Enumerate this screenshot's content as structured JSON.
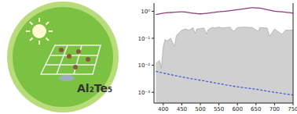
{
  "logo": {
    "text": "Al₂Te₅"
  },
  "chart_data": {
    "type": "line",
    "log": "y",
    "grid": false,
    "xlim": [
      375,
      750
    ],
    "xticks": [
      400,
      450,
      500,
      550,
      600,
      650,
      700,
      750
    ],
    "ylim": [
      0.0004,
      2
    ],
    "yticks": [
      {
        "value": 0.001,
        "label": "10⁻³"
      },
      {
        "value": 0.01,
        "label": "10⁻²"
      },
      {
        "value": 0.1,
        "label": "10⁻¹"
      },
      {
        "value": 1,
        "label": "10⁰"
      }
    ],
    "series": [
      {
        "type": "area",
        "color": "#9a9a9a",
        "x": [
          380,
          390,
          395,
          400,
          405,
          410,
          420,
          430,
          435,
          440,
          450,
          460,
          470,
          480,
          486,
          490,
          500,
          510,
          517,
          520,
          530,
          540,
          550,
          560,
          570,
          580,
          589,
          600,
          620,
          640,
          656,
          660,
          680,
          687,
          700,
          720,
          730,
          750
        ],
        "values": [
          0.012,
          0.015,
          0.008,
          0.05,
          0.09,
          0.08,
          0.1,
          0.05,
          0.12,
          0.15,
          0.2,
          0.22,
          0.2,
          0.25,
          0.15,
          0.22,
          0.23,
          0.24,
          0.14,
          0.2,
          0.25,
          0.24,
          0.26,
          0.24,
          0.25,
          0.26,
          0.18,
          0.25,
          0.26,
          0.25,
          0.18,
          0.25,
          0.24,
          0.12,
          0.22,
          0.14,
          0.2,
          0.2
        ]
      },
      {
        "type": "line",
        "color": "#8e3a7e",
        "line_style": "solid",
        "x": [
          380,
          400,
          420,
          450,
          480,
          500,
          520,
          550,
          580,
          600,
          620,
          640,
          660,
          680,
          700,
          720,
          750
        ],
        "values": [
          0.75,
          0.85,
          0.9,
          0.95,
          0.85,
          0.8,
          0.85,
          0.95,
          1.05,
          1.15,
          1.25,
          1.35,
          1.3,
          1.15,
          1.0,
          0.95,
          0.85
        ]
      },
      {
        "type": "line",
        "color": "#4b5bd6",
        "line_style": "dashed",
        "x": [
          380,
          420,
          460,
          500,
          550,
          600,
          650,
          700,
          750
        ],
        "values": [
          0.006,
          0.0045,
          0.0035,
          0.0028,
          0.0021,
          0.0016,
          0.0013,
          0.001,
          0.0008
        ]
      }
    ]
  }
}
